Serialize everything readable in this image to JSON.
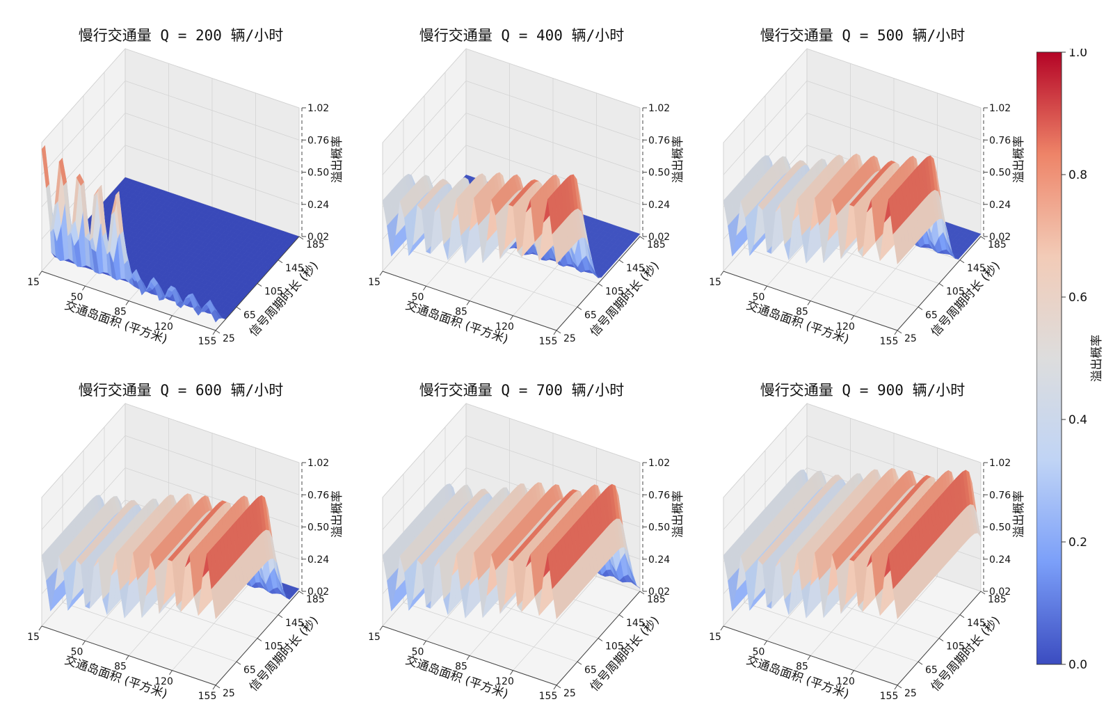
{
  "chart_data": [
    {
      "type": "surface",
      "title": "慢行交通量 Q = 200 辆/小时",
      "q": 200,
      "x_label": "交通岛面积 (平方米)",
      "y_label": "信号周期时长 (秒)",
      "z_label": "溢出概率",
      "x_ticks": [
        "15",
        "50",
        "85",
        "120",
        "155"
      ],
      "y_ticks": [
        "25",
        "65",
        "105",
        "145",
        "185"
      ],
      "z_ticks": [
        "0.02",
        "0.24",
        "0.50",
        "0.76",
        "1.02"
      ],
      "x_range": [
        15,
        155
      ],
      "y_range": [
        25,
        185
      ],
      "z_range": [
        0.02,
        1.02
      ]
    },
    {
      "type": "surface",
      "title": "慢行交通量 Q = 400 辆/小时",
      "q": 400,
      "x_label": "交通岛面积 (平方米)",
      "y_label": "信号周期时长 (秒)",
      "z_label": "溢出概率",
      "x_ticks": [
        "15",
        "50",
        "85",
        "120",
        "155"
      ],
      "y_ticks": [
        "25",
        "65",
        "105",
        "145",
        "185"
      ],
      "z_ticks": [
        "0.02",
        "0.24",
        "0.50",
        "0.76",
        "1.02"
      ],
      "x_range": [
        15,
        155
      ],
      "y_range": [
        25,
        185
      ],
      "z_range": [
        0.02,
        1.02
      ]
    },
    {
      "type": "surface",
      "title": "慢行交通量 Q = 500 辆/小时",
      "q": 500,
      "x_label": "交通岛面积 (平方米)",
      "y_label": "信号周期时长 (秒)",
      "z_label": "溢出概率",
      "x_ticks": [
        "15",
        "50",
        "85",
        "120",
        "155"
      ],
      "y_ticks": [
        "25",
        "65",
        "105",
        "145",
        "185"
      ],
      "z_ticks": [
        "0.02",
        "0.24",
        "0.50",
        "0.76",
        "1.02"
      ],
      "x_range": [
        15,
        155
      ],
      "y_range": [
        25,
        185
      ],
      "z_range": [
        0.02,
        1.02
      ]
    },
    {
      "type": "surface",
      "title": "慢行交通量 Q = 600 辆/小时",
      "q": 600,
      "x_label": "交通岛面积 (平方米)",
      "y_label": "信号周期时长 (秒)",
      "z_label": "溢出概率",
      "x_ticks": [
        "15",
        "50",
        "85",
        "120",
        "155"
      ],
      "y_ticks": [
        "25",
        "65",
        "105",
        "145",
        "185"
      ],
      "z_ticks": [
        "0.02",
        "0.24",
        "0.50",
        "0.76",
        "1.02"
      ],
      "x_range": [
        15,
        155
      ],
      "y_range": [
        25,
        185
      ],
      "z_range": [
        0.02,
        1.02
      ]
    },
    {
      "type": "surface",
      "title": "慢行交通量 Q = 700 辆/小时",
      "q": 700,
      "x_label": "交通岛面积 (平方米)",
      "y_label": "信号周期时长 (秒)",
      "z_label": "溢出概率",
      "x_ticks": [
        "15",
        "50",
        "85",
        "120",
        "155"
      ],
      "y_ticks": [
        "25",
        "65",
        "105",
        "145",
        "185"
      ],
      "z_ticks": [
        "0.02",
        "0.24",
        "0.50",
        "0.76",
        "1.02"
      ],
      "x_range": [
        15,
        155
      ],
      "y_range": [
        25,
        185
      ],
      "z_range": [
        0.02,
        1.02
      ]
    },
    {
      "type": "surface",
      "title": "慢行交通量 Q = 900 辆/小时",
      "q": 900,
      "x_label": "交通岛面积 (平方米)",
      "y_label": "信号周期时长 (秒)",
      "z_label": "溢出概率",
      "x_ticks": [
        "15",
        "50",
        "85",
        "120",
        "155"
      ],
      "y_ticks": [
        "25",
        "65",
        "105",
        "145",
        "185"
      ],
      "z_ticks": [
        "0.02",
        "0.24",
        "0.50",
        "0.76",
        "1.02"
      ],
      "x_range": [
        15,
        155
      ],
      "y_range": [
        25,
        185
      ],
      "z_range": [
        0.02,
        1.02
      ]
    }
  ],
  "colorbar": {
    "label": "溢出概率",
    "colormap": "coolwarm",
    "range": [
      0.0,
      1.0
    ],
    "ticks": [
      "0.0",
      "0.2",
      "0.4",
      "0.6",
      "0.8",
      "1.0"
    ],
    "colors": [
      "#3b4cc0",
      "#7b9ff9",
      "#c0d4f5",
      "#dddddd",
      "#f2cbb7",
      "#ee8468",
      "#b40426"
    ]
  }
}
